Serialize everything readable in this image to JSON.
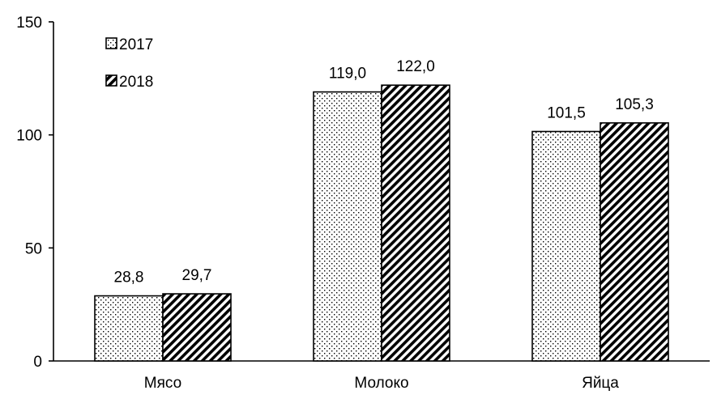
{
  "chart_data": {
    "type": "bar",
    "categories": [
      "Мясо",
      "Молоко",
      "Яйца"
    ],
    "series": [
      {
        "name": "2017",
        "values": [
          28.8,
          119.0,
          101.5
        ],
        "labels": [
          "28,8",
          "119,0",
          "101,5"
        ],
        "pattern": "dots"
      },
      {
        "name": "2018",
        "values": [
          29.7,
          122.0,
          105.3
        ],
        "labels": [
          "29,7",
          "122,0",
          "105,3"
        ],
        "pattern": "diagonal-stripes"
      }
    ],
    "yticks": [
      "0",
      "50",
      "100",
      "150"
    ],
    "ylim": [
      0,
      150
    ],
    "title": "",
    "xlabel": "",
    "ylabel": "",
    "grid": false,
    "legend_position": "top-left",
    "colors": {
      "ink": "#000000",
      "background": "#ffffff"
    }
  }
}
